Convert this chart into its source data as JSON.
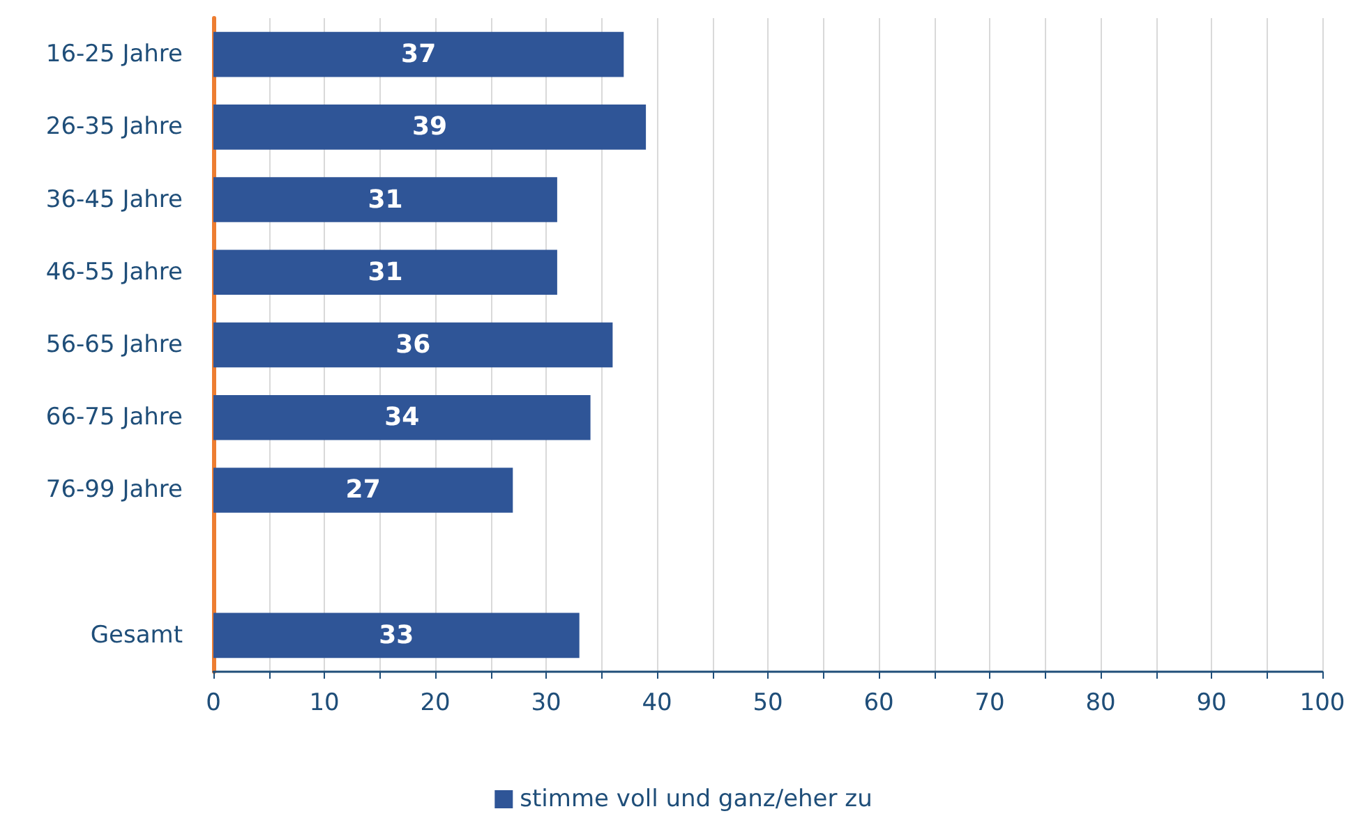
{
  "chart_data": {
    "type": "bar",
    "orientation": "horizontal",
    "categories": [
      "16-25 Jahre",
      "26-35 Jahre",
      "36-45 Jahre",
      "46-55 Jahre",
      "56-65 Jahre",
      "66-75 Jahre",
      "76-99 Jahre",
      null,
      "Gesamt"
    ],
    "series": [
      {
        "name": "stimme voll und ganz/eher zu",
        "color": "#2f5597",
        "values": [
          37,
          39,
          31,
          31,
          36,
          34,
          27,
          null,
          33
        ]
      }
    ],
    "xlim": [
      0,
      100
    ],
    "xticks": [
      0,
      {
        "value": 5,
        "label": null
      },
      10,
      {
        "value": 15,
        "label": null
      },
      20,
      {
        "value": 25,
        "label": null
      },
      30,
      {
        "value": 35,
        "label": null
      },
      40,
      {
        "value": 45,
        "label": null
      },
      50,
      {
        "value": 55,
        "label": null
      },
      60,
      {
        "value": 65,
        "label": null
      },
      70,
      {
        "value": 75,
        "label": null
      },
      80,
      {
        "value": 85,
        "label": null
      },
      90,
      {
        "value": 95,
        "label": null
      },
      100
    ],
    "grid": "x",
    "legend": "bottom",
    "data_labels": true
  }
}
